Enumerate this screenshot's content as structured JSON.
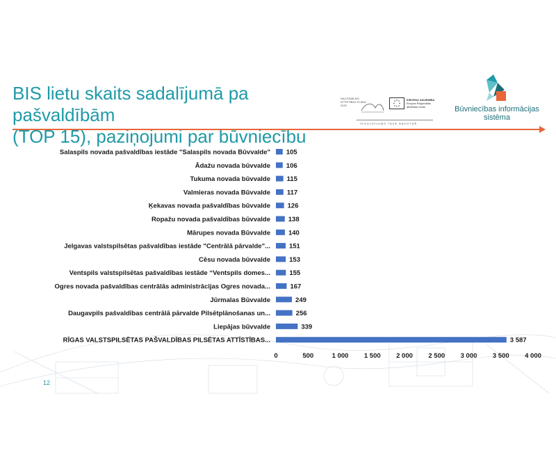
{
  "slide": {
    "title_line1": "BIS lietu skaits sadalījumā pa pašvaldībām",
    "title_line2": "(TOP 15), paziņojumi par būvniecību",
    "page_number": "12",
    "accent_color": "#e8663a",
    "title_color": "#1f9aa8"
  },
  "logos": {
    "nap_text": "NACIONĀLAIS ATTĪSTĪBAS PLĀNS 2020",
    "eu_title": "EIROPAS SAVIENĪBA",
    "eu_subtitle": "Eiropas Reģionālās attīstības fonds",
    "motto": "IEGULDĪJUMS TAVĀ NĀKOTNĒ",
    "bis_line1": "Būvniecības informācijas",
    "bis_line2": "sistēma"
  },
  "chart_data": {
    "type": "bar",
    "orientation": "horizontal",
    "bar_color": "#4472c4",
    "categories": [
      "Salaspils novada pašvaldības iestāde \"Salaspils novada Būvvalde\"",
      "Ādažu novada būvvalde",
      "Tukuma novada būvvalde",
      "Valmieras novada Būvvalde",
      "Ķekavas novada pašvaldības būvvalde",
      "Ropažu novada pašvaldības būvvalde",
      "Mārupes novada Būvvalde",
      "Jelgavas valstspilsētas pašvaldības iestāde \"Centrālā pārvalde\"...",
      "Cēsu novada būvvalde",
      "Ventspils valstspilsētas pašvaldības iestāde  “Ventspils domes...",
      "Ogres novada pašvaldības centrālās administrācijas Ogres novada...",
      "Jūrmalas Būvvalde",
      "Daugavpils pašvaldības centrālā pārvalde Pilsētplānošanas un...",
      "Liepājas būvvalde",
      "RĪGAS VALSTSPILSĒTAS PAŠVALDĪBAS PILSĒTAS ATTĪSTĪBAS..."
    ],
    "values": [
      105,
      106,
      115,
      117,
      126,
      138,
      140,
      151,
      153,
      155,
      167,
      249,
      256,
      339,
      3587
    ],
    "value_labels": [
      "105",
      "106",
      "115",
      "117",
      "126",
      "138",
      "140",
      "151",
      "153",
      "155",
      "167",
      "249",
      "256",
      "339",
      "3 587"
    ],
    "xlim": [
      0,
      4000
    ],
    "xticks": [
      0,
      500,
      1000,
      1500,
      2000,
      2500,
      3000,
      3500,
      4000
    ],
    "xtick_labels": [
      "0",
      "500",
      "1 000",
      "1 500",
      "2 000",
      "2 500",
      "3 000",
      "3 500",
      "4 000"
    ],
    "grid": false,
    "legend": "none"
  }
}
